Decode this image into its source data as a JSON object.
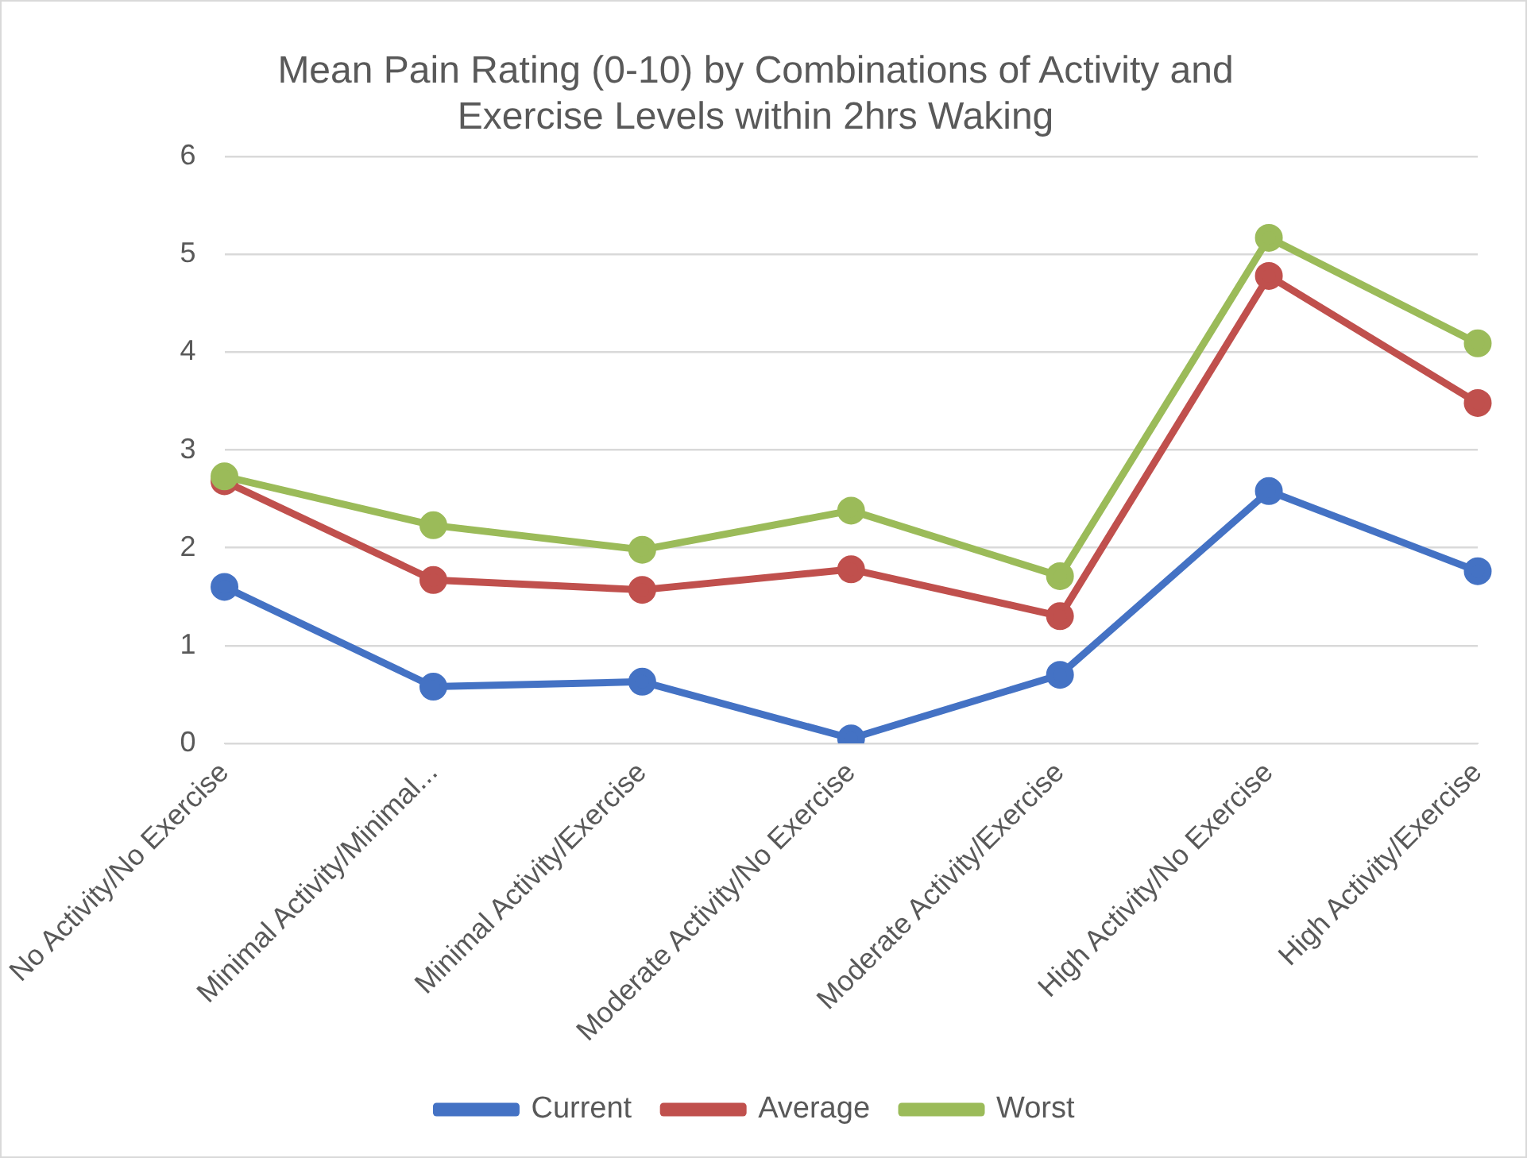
{
  "chart_data": {
    "type": "line",
    "title": [
      "Mean Pain Rating (0-10) by Combinations of Activity and",
      "Exercise Levels within 2hrs Waking"
    ],
    "categories": [
      "No Activity/No Exercise",
      "Minimal Activity/Minimal...",
      "Minimal Activity/Exercise",
      "Moderate Activity/No Exercise",
      "Moderate Activity/Exercise",
      "High Activity/No Exercise",
      "High Activity/Exercise"
    ],
    "series": [
      {
        "name": "Current",
        "color": "#4472c4",
        "values": [
          1.6,
          0.58,
          0.63,
          0.05,
          0.7,
          2.58,
          1.76
        ]
      },
      {
        "name": "Average",
        "color": "#c0504d",
        "values": [
          2.68,
          1.67,
          1.57,
          1.78,
          1.3,
          4.78,
          3.48
        ]
      },
      {
        "name": "Worst",
        "color": "#9bbb59",
        "values": [
          2.73,
          2.23,
          1.98,
          2.38,
          1.71,
          5.17,
          4.09
        ]
      }
    ],
    "ylim": [
      0,
      6
    ],
    "yticks": [
      0,
      1,
      2,
      3,
      4,
      5,
      6
    ],
    "grid": "y",
    "legend": "bottom",
    "marker": "circle",
    "line_style": "solid"
  }
}
